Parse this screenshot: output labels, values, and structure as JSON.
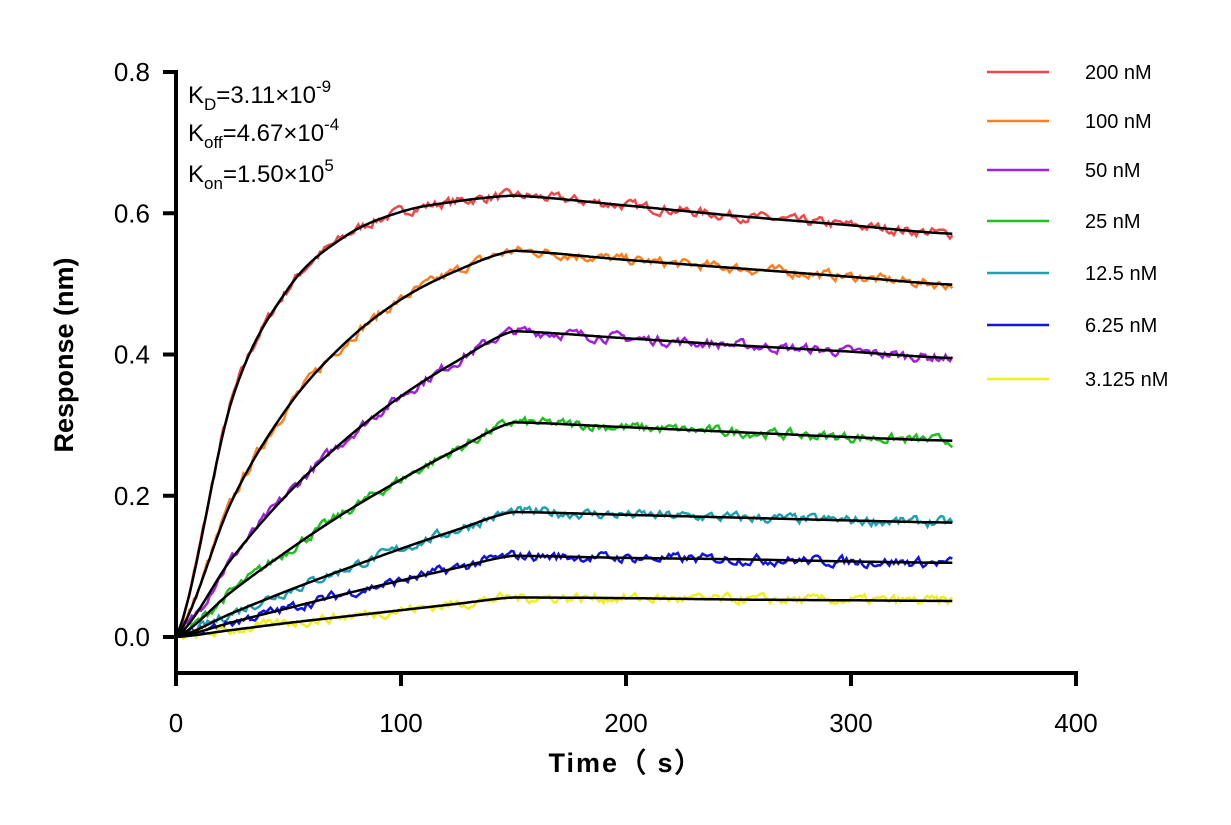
{
  "chart_data": {
    "type": "line",
    "title": "",
    "xlabel": "Time（ s）",
    "ylabel": "Response (nm)",
    "xlim": [
      0,
      400
    ],
    "ylim": [
      -0.05,
      0.8
    ],
    "xticks": [
      0,
      100,
      200,
      300,
      400
    ],
    "xtick_labels": [
      "0",
      "100",
      "200",
      "300",
      "400"
    ],
    "yticks": [
      0.0,
      0.2,
      0.4,
      0.6,
      0.8
    ],
    "ytick_labels": [
      "0.0",
      "0.2",
      "0.4",
      "0.6",
      "0.8"
    ],
    "grid": false,
    "legend_position": "top-right",
    "association_end_time": 150,
    "x": [
      0,
      25,
      50,
      75,
      100,
      125,
      150,
      200,
      250,
      300,
      345
    ],
    "series": [
      {
        "name": "200 nM",
        "color": "#f04848",
        "fit": [
          0,
          0.337,
          0.494,
          0.567,
          0.602,
          0.617,
          0.625,
          0.611,
          0.596,
          0.583,
          0.571
        ]
      },
      {
        "name": "100 nM",
        "color": "#ff8020",
        "fit": [
          0,
          0.194,
          0.327,
          0.416,
          0.478,
          0.519,
          0.547,
          0.534,
          0.522,
          0.51,
          0.499
        ]
      },
      {
        "name": "50 nM",
        "color": "#a020e0",
        "fit": [
          0,
          0.112,
          0.204,
          0.279,
          0.341,
          0.391,
          0.433,
          0.423,
          0.413,
          0.404,
          0.395
        ]
      },
      {
        "name": "25 nM",
        "color": "#20c020",
        "fit": [
          0,
          0.065,
          0.123,
          0.176,
          0.223,
          0.266,
          0.304,
          0.297,
          0.29,
          0.283,
          0.278
        ]
      },
      {
        "name": "12.5 nM",
        "color": "#20a0b0",
        "fit": [
          0,
          0.034,
          0.066,
          0.096,
          0.125,
          0.152,
          0.177,
          0.173,
          0.169,
          0.165,
          0.162
        ]
      },
      {
        "name": "6.25 nM",
        "color": "#1414e0",
        "fit": [
          0,
          0.021,
          0.041,
          0.061,
          0.08,
          0.098,
          0.115,
          0.112,
          0.11,
          0.107,
          0.105
        ]
      },
      {
        "name": "3.125 nM",
        "color": "#f0f020",
        "fit": [
          0,
          0.01,
          0.02,
          0.029,
          0.038,
          0.047,
          0.056,
          0.055,
          0.053,
          0.052,
          0.051
        ]
      }
    ],
    "fit_color": "#000000",
    "annotations": {
      "kd": {
        "sym": "K",
        "sub": "D",
        "val": "=3.11×10",
        "exp": "-9"
      },
      "koff": {
        "sym": "K",
        "sub": "off",
        "val": "=4.67×10",
        "exp": "-4"
      },
      "kon": {
        "sym": "K",
        "sub": "on",
        "val": "=1.50×10",
        "exp": "5"
      }
    }
  }
}
